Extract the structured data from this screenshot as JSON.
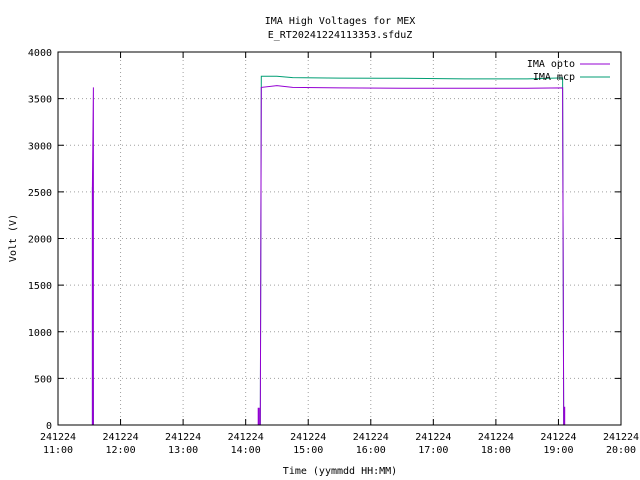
{
  "chart_data": {
    "type": "line",
    "title": "IMA High Voltages for MEX",
    "subtitle": "E_RT20241224113353.sfduZ",
    "xlabel": "Time (yymmdd HH:MM)",
    "ylabel": "Volt (V)",
    "ylim": [
      0,
      4000
    ],
    "xlim": [
      "2024-12-24 11:00",
      "2024-12-24 20:00"
    ],
    "grid": true,
    "legend_position": "top-right",
    "y_ticks": [
      "0",
      "500",
      "1000",
      "1500",
      "2000",
      "2500",
      "3000",
      "3500",
      "4000"
    ],
    "x_ticks": [
      {
        "date": "241224",
        "time": "11:00"
      },
      {
        "date": "241224",
        "time": "12:00"
      },
      {
        "date": "241224",
        "time": "13:00"
      },
      {
        "date": "241224",
        "time": "14:00"
      },
      {
        "date": "241224",
        "time": "15:00"
      },
      {
        "date": "241224",
        "time": "16:00"
      },
      {
        "date": "241224",
        "time": "17:00"
      },
      {
        "date": "241224",
        "time": "18:00"
      },
      {
        "date": "241224",
        "time": "19:00"
      },
      {
        "date": "241224",
        "time": "20:00"
      }
    ],
    "series": [
      {
        "name": "IMA opto",
        "color": "#9400d3",
        "points": [
          [
            "2024-12-24 11:33",
            0
          ],
          [
            "2024-12-24 11:33",
            2550
          ],
          [
            "2024-12-24 11:34",
            3620
          ],
          [
            "2024-12-24 11:34",
            0
          ],
          [
            "2024-12-24 14:12",
            0
          ],
          [
            "2024-12-24 14:12",
            180
          ],
          [
            "2024-12-24 14:13",
            180
          ],
          [
            "2024-12-24 14:13",
            0
          ],
          [
            "2024-12-24 14:14",
            0
          ],
          [
            "2024-12-24 14:15",
            3620
          ],
          [
            "2024-12-24 14:30",
            3640
          ],
          [
            "2024-12-24 14:45",
            3620
          ],
          [
            "2024-12-24 15:30",
            3615
          ],
          [
            "2024-12-24 16:30",
            3612
          ],
          [
            "2024-12-24 17:30",
            3612
          ],
          [
            "2024-12-24 18:30",
            3612
          ],
          [
            "2024-12-24 19:04",
            3615
          ],
          [
            "2024-12-24 19:05",
            0
          ],
          [
            "2024-12-24 19:05",
            0
          ],
          [
            "2024-12-24 19:05",
            190
          ],
          [
            "2024-12-24 19:06",
            190
          ],
          [
            "2024-12-24 19:06",
            0
          ]
        ]
      },
      {
        "name": "IMA mcp",
        "color": "#009e73",
        "points": [
          [
            "2024-12-24 11:33",
            0
          ],
          [
            "2024-12-24 11:33",
            2550
          ],
          [
            "2024-12-24 11:34",
            0
          ],
          [
            "2024-12-24 14:14",
            0
          ],
          [
            "2024-12-24 14:15",
            3740
          ],
          [
            "2024-12-24 14:30",
            3740
          ],
          [
            "2024-12-24 14:45",
            3725
          ],
          [
            "2024-12-24 15:30",
            3720
          ],
          [
            "2024-12-24 16:30",
            3718
          ],
          [
            "2024-12-24 17:30",
            3712
          ],
          [
            "2024-12-24 18:30",
            3712
          ],
          [
            "2024-12-24 19:04",
            3722
          ],
          [
            "2024-12-24 19:05",
            0
          ]
        ]
      }
    ]
  }
}
